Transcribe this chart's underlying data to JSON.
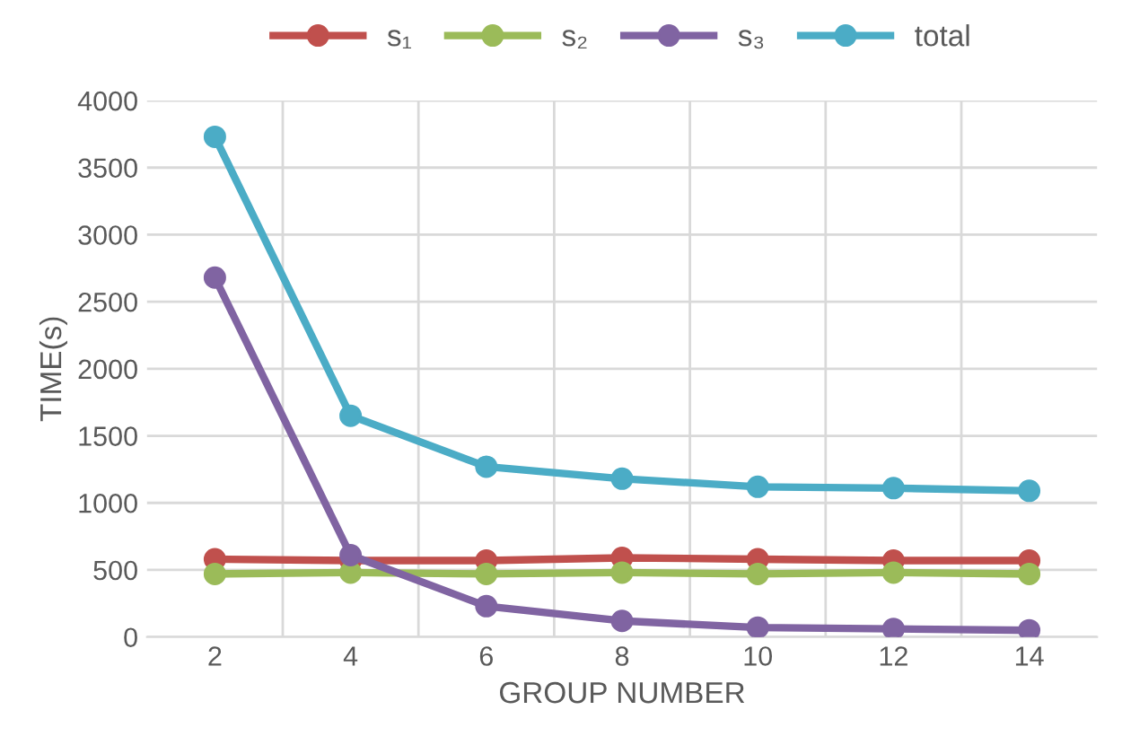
{
  "chart_data": {
    "type": "line",
    "xlabel": "GROUP NUMBER",
    "ylabel": "TIME(s)",
    "categories": [
      "2",
      "4",
      "6",
      "8",
      "10",
      "12",
      "14"
    ],
    "series": [
      {
        "name": "s₁",
        "color": "#c0504d",
        "values": [
          580,
          570,
          570,
          590,
          580,
          570,
          570
        ]
      },
      {
        "name": "s₂",
        "color": "#9bbb59",
        "values": [
          470,
          480,
          470,
          480,
          470,
          480,
          470
        ]
      },
      {
        "name": "s₃",
        "color": "#8064a2",
        "values": [
          2680,
          610,
          230,
          120,
          70,
          60,
          50
        ]
      },
      {
        "name": "total",
        "color": "#4bacc6",
        "values": [
          3730,
          1650,
          1270,
          1180,
          1120,
          1110,
          1090
        ]
      }
    ],
    "ylim": [
      0,
      4000
    ],
    "yticks": [
      0,
      500,
      1000,
      1500,
      2000,
      2500,
      3000,
      3500,
      4000
    ],
    "grid": true,
    "legend": "top",
    "marker": "circle",
    "line_style": "solid"
  }
}
